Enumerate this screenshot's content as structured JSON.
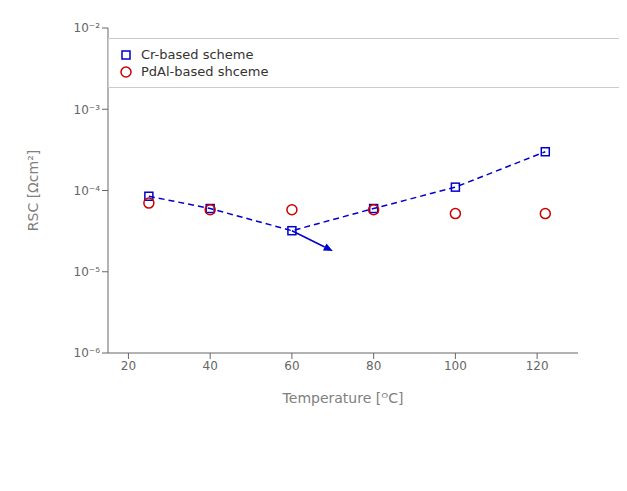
{
  "chart_data": {
    "type": "line",
    "x": [
      25,
      40,
      60,
      80,
      100,
      122
    ],
    "series": [
      {
        "name": "Cr-based scheme",
        "type": "line",
        "color": "#0000cc",
        "marker": "square",
        "line_style": "dashed",
        "values": [
          8.5e-05,
          6e-05,
          3.2e-05,
          6e-05,
          0.00011,
          0.0003
        ]
      },
      {
        "name": "PdAl-based shceme",
        "type": "scatter",
        "color": "#cc0000",
        "marker": "circle",
        "line_style": "none",
        "values": [
          7e-05,
          5.8e-05,
          5.8e-05,
          5.8e-05,
          5.2e-05,
          5.2e-05
        ]
      }
    ],
    "xlabel": "Temperature [ᴼC]",
    "ylabel": "RSC [Ωcm²]",
    "xlim": [
      15,
      130
    ],
    "xticks": [
      20,
      40,
      60,
      80,
      100,
      120
    ],
    "ylim": [
      1e-06,
      0.01
    ],
    "yticks": [
      {
        "value": 1e-06,
        "label": "10⁻⁶"
      },
      {
        "value": 1e-05,
        "label": "10⁻⁵"
      },
      {
        "value": 0.0001,
        "label": "10⁻⁴"
      },
      {
        "value": 0.001,
        "label": "10⁻³"
      },
      {
        "value": 0.01,
        "label": "10⁻²"
      }
    ],
    "log": "y",
    "grid": false,
    "legend": "upper left",
    "annotations": [
      {
        "arrow_from": [
          60,
          3.2e-05
        ],
        "arrow_to": [
          70,
          1.8e-05
        ],
        "color": "#0000cc"
      }
    ]
  }
}
